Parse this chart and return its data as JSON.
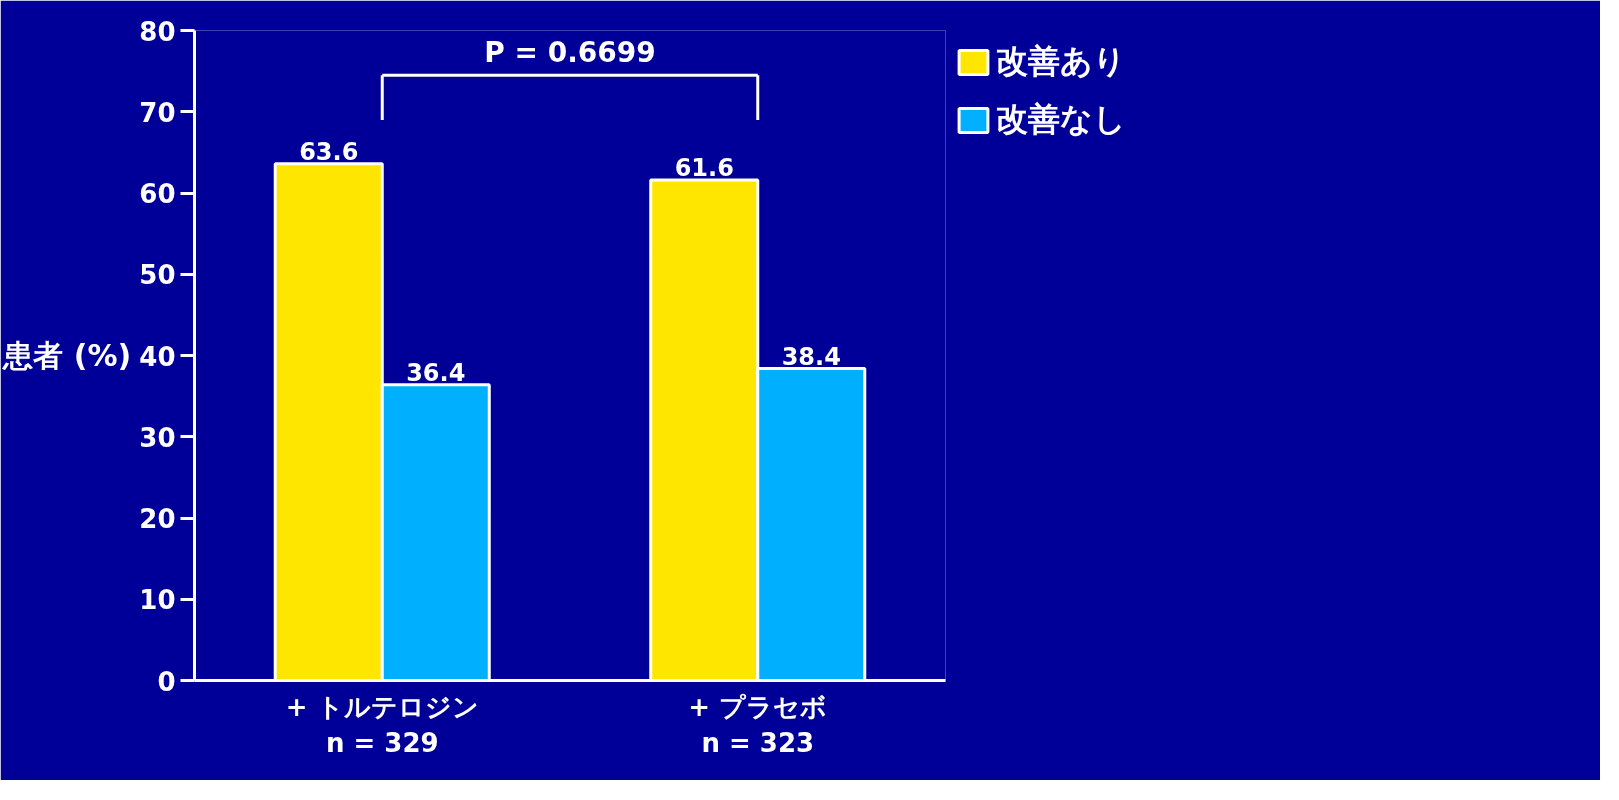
{
  "chart_data": {
    "type": "bar",
    "categories": [
      "+ トルテロジン\nn = 329",
      "+ プラセボ\nn = 323"
    ],
    "series": [
      {
        "name": "改善あり",
        "color": "#ffe600",
        "values": [
          63.6,
          61.6
        ]
      },
      {
        "name": "改善なし",
        "color": "#00b0ff",
        "values": [
          36.4,
          38.4
        ]
      }
    ],
    "ylabel": "患者 (%)",
    "ylim": [
      0,
      80
    ],
    "yticks": [
      0,
      10,
      20,
      30,
      40,
      50,
      60,
      70,
      80
    ],
    "data_labels": true,
    "legend": "top right",
    "grid": false,
    "annotations": [
      "P = 0.6699"
    ]
  }
}
